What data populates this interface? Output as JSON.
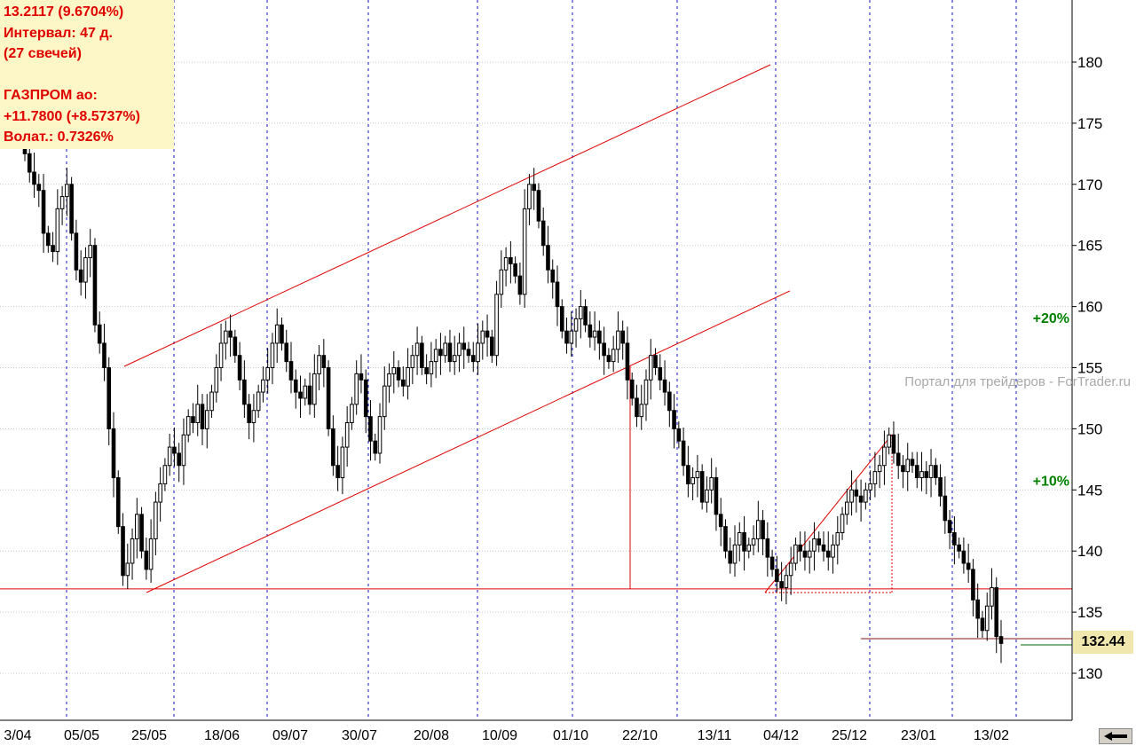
{
  "info_box": {
    "line1": "13.2117 (9.6704%)",
    "line2": "Интервал: 47 д.",
    "line3": "(27 свечей)",
    "line4": "ГАЗПРОМ ао:",
    "line5": "+11.7800 (+8.5737%)",
    "line6": "Волат.: 0.7326%"
  },
  "watermark": "Портал для трейдеров - ForTrader.ru",
  "current_price": "132.44",
  "colors": {
    "info_bg": "#fdf6c6",
    "info_text": "#e00000",
    "channel": "#e00000",
    "grid_vertical": "#1010c0",
    "grid_horizontal": "#c8c8c8",
    "percent_labels": "#008000",
    "price_label_bg": "#efe7ad",
    "candle": "#000000"
  },
  "chart_data": {
    "type": "candlestick",
    "title": "",
    "ylim": [
      126,
      185
    ],
    "y_ticks": [
      130,
      135,
      140,
      145,
      150,
      155,
      160,
      165,
      170,
      175,
      180
    ],
    "x_tick_labels": [
      "3/04",
      "05/05",
      "25/05",
      "18/06",
      "09/07",
      "30/07",
      "20/08",
      "10/09",
      "01/10",
      "22/10",
      "13/11",
      "04/12",
      "25/12",
      "23/01",
      "13/02"
    ],
    "grid": true,
    "percent_labels": [
      {
        "label": "+20%",
        "price": 159.1
      },
      {
        "label": "+10%",
        "price": 145.8
      }
    ],
    "levels": [
      {
        "name": "support",
        "price": 136.9
      }
    ],
    "closes": [
      172.5,
      171.0,
      170.0,
      169.5,
      166.0,
      165.0,
      164.5,
      168.0,
      169.0,
      170.0,
      166.0,
      163.0,
      162.0,
      164.0,
      165.0,
      158.5,
      157.0,
      155.0,
      150.0,
      146.0,
      142.0,
      138.0,
      139.0,
      141.0,
      143.0,
      140.0,
      138.5,
      141.0,
      144.0,
      145.5,
      147.0,
      148.5,
      148.0,
      147.0,
      149.5,
      151.0,
      150.5,
      152.0,
      150.0,
      151.5,
      153.0,
      155.0,
      157.0,
      158.0,
      157.5,
      156.0,
      154.0,
      152.0,
      150.5,
      151.5,
      153.0,
      154.0,
      155.0,
      157.0,
      158.5,
      157.0,
      155.5,
      154.0,
      153.0,
      152.5,
      153.5,
      152.0,
      154.5,
      156.0,
      155.0,
      150.0,
      147.0,
      146.0,
      148.5,
      150.5,
      152.0,
      154.5,
      154.0,
      151.0,
      149.0,
      148.0,
      151.0,
      153.5,
      154.5,
      155.0,
      154.0,
      153.5,
      155.0,
      156.0,
      157.0,
      155.0,
      154.5,
      155.5,
      156.5,
      156.0,
      157.0,
      155.5,
      156.0,
      157.0,
      156.5,
      156.0,
      155.5,
      157.0,
      158.0,
      157.5,
      156.0,
      161.0,
      163.0,
      164.0,
      163.5,
      162.5,
      161.0,
      168.0,
      170.0,
      169.5,
      167.0,
      165.0,
      163.0,
      162.0,
      160.0,
      158.0,
      157.0,
      158.0,
      159.0,
      160.0,
      158.5,
      157.5,
      158.0,
      157.0,
      156.0,
      155.5,
      156.5,
      158.0,
      157.0,
      154.0,
      152.5,
      151.0,
      152.0,
      154.0,
      156.0,
      155.0,
      154.0,
      153.0,
      151.5,
      150.0,
      149.0,
      147.0,
      145.5,
      146.0,
      146.5,
      144.0,
      145.0,
      146.0,
      143.0,
      142.0,
      140.0,
      139.0,
      140.5,
      141.5,
      140.0,
      140.5,
      141.0,
      142.5,
      141.0,
      139.5,
      138.5,
      137.5,
      137.0,
      138.0,
      139.0,
      140.5,
      140.0,
      139.5,
      140.0,
      141.0,
      140.5,
      140.0,
      139.5,
      140.5,
      141.5,
      143.0,
      144.0,
      145.0,
      144.5,
      144.0,
      145.0,
      145.5,
      146.5,
      147.0,
      148.5,
      149.5,
      148.0,
      147.0,
      146.5,
      147.5,
      147.0,
      146.0,
      146.5,
      146.0,
      147.0,
      146.0,
      144.5,
      142.5,
      141.5,
      140.5,
      140.0,
      139.0,
      138.5,
      136.0,
      134.5,
      133.5,
      135.5,
      137.0,
      133.0,
      132.44
    ]
  }
}
